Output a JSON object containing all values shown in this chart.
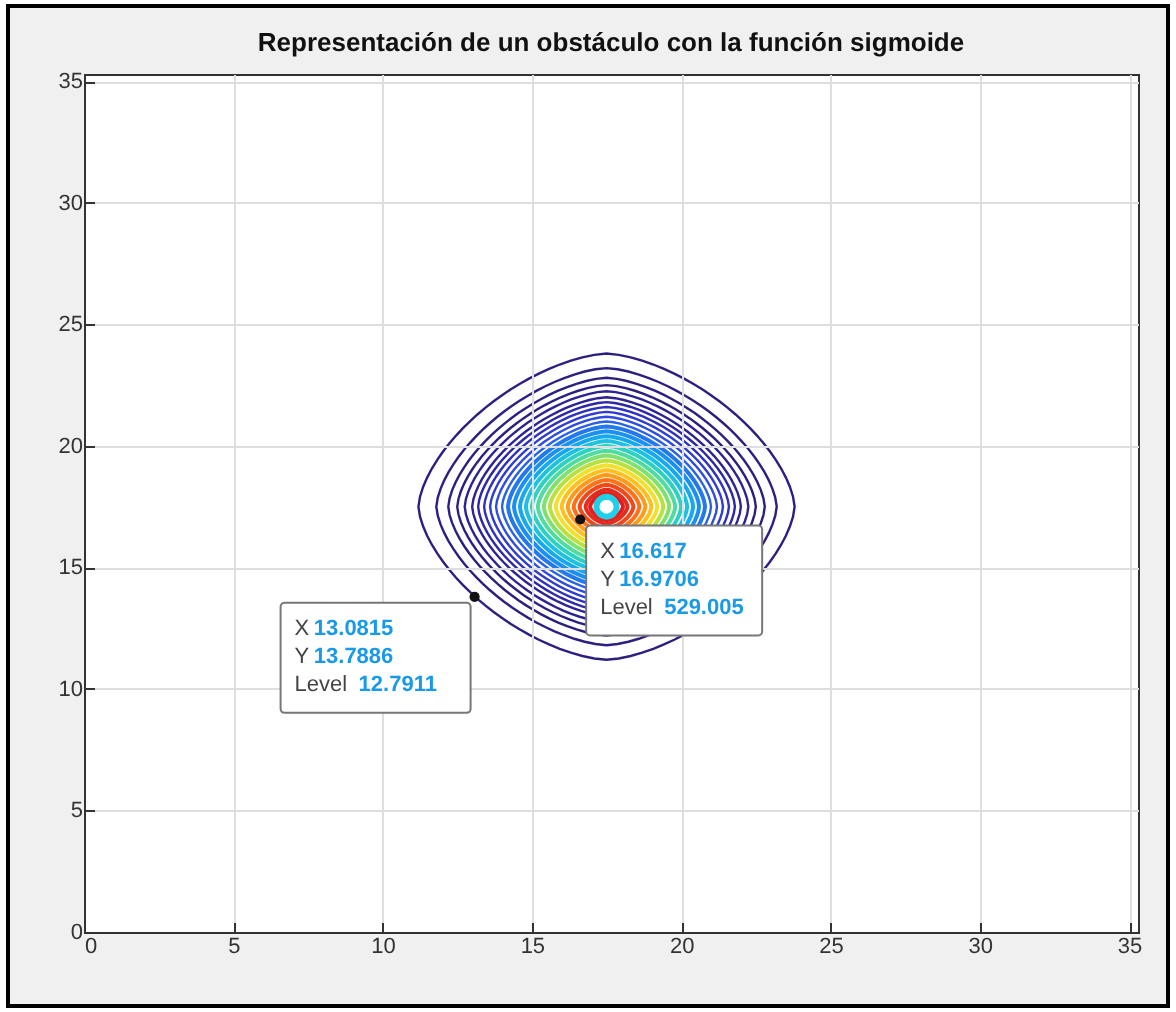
{
  "chart_data": {
    "type": "scatter",
    "title": "Representación de un obstáculo con la función sigmoide",
    "xlim": [
      0,
      35.3
    ],
    "ylim": [
      0,
      35.3
    ],
    "xticks": [
      0,
      5,
      10,
      15,
      20,
      25,
      30,
      35
    ],
    "yticks": [
      0,
      5,
      10,
      15,
      20,
      25,
      30,
      35
    ],
    "grid": true,
    "marker": "circle",
    "series": [
      {
        "color": "#111111",
        "x": [
          16.617,
          13.0815
        ],
        "values": [
          16.9706,
          13.7886
        ]
      }
    ],
    "annotations": [
      {
        "text": "X 16.617\nY 16.9706\nLevel 529.005",
        "x": 16.617,
        "y": 16.9706
      },
      {
        "text": "X 13.0815\nY 13.7886\nLevel 12.7911",
        "x": 13.0815,
        "y": 13.7886
      }
    ]
  }
}
